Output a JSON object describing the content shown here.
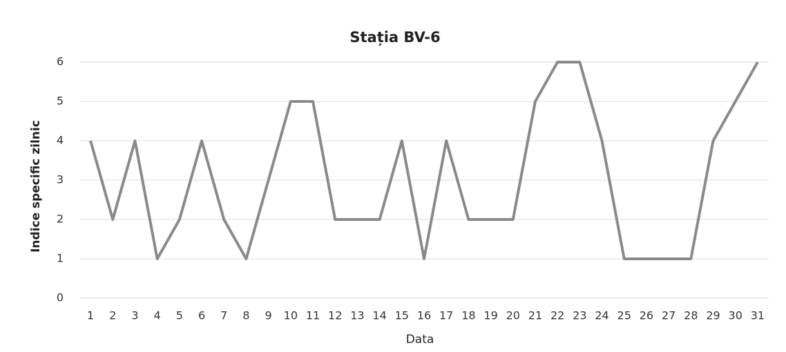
{
  "chart_data": {
    "type": "line",
    "title": "Stația BV-6",
    "y_label": "Indice specific zilnic",
    "x_label": "Data",
    "categories": [
      "1",
      "2",
      "3",
      "4",
      "5",
      "6",
      "7",
      "8",
      "9",
      "10",
      "11",
      "12",
      "13",
      "14",
      "15",
      "16",
      "17",
      "18",
      "19",
      "20",
      "21",
      "22",
      "23",
      "24",
      "25",
      "26",
      "27",
      "28",
      "29",
      "30",
      "31"
    ],
    "series": [
      {
        "name": "Stația BV-6",
        "color": "#8a8a8a",
        "values": [
          4,
          2,
          4,
          1,
          2,
          4,
          2,
          1,
          3,
          5,
          5,
          2,
          2,
          2,
          4,
          1,
          4,
          2,
          2,
          2,
          5,
          6,
          6,
          4,
          1,
          1,
          1,
          1,
          4,
          5,
          6
        ]
      }
    ],
    "ylim": [
      0,
      6
    ],
    "yticks": [
      0,
      1,
      2,
      3,
      4,
      5,
      6
    ],
    "grid": true
  }
}
